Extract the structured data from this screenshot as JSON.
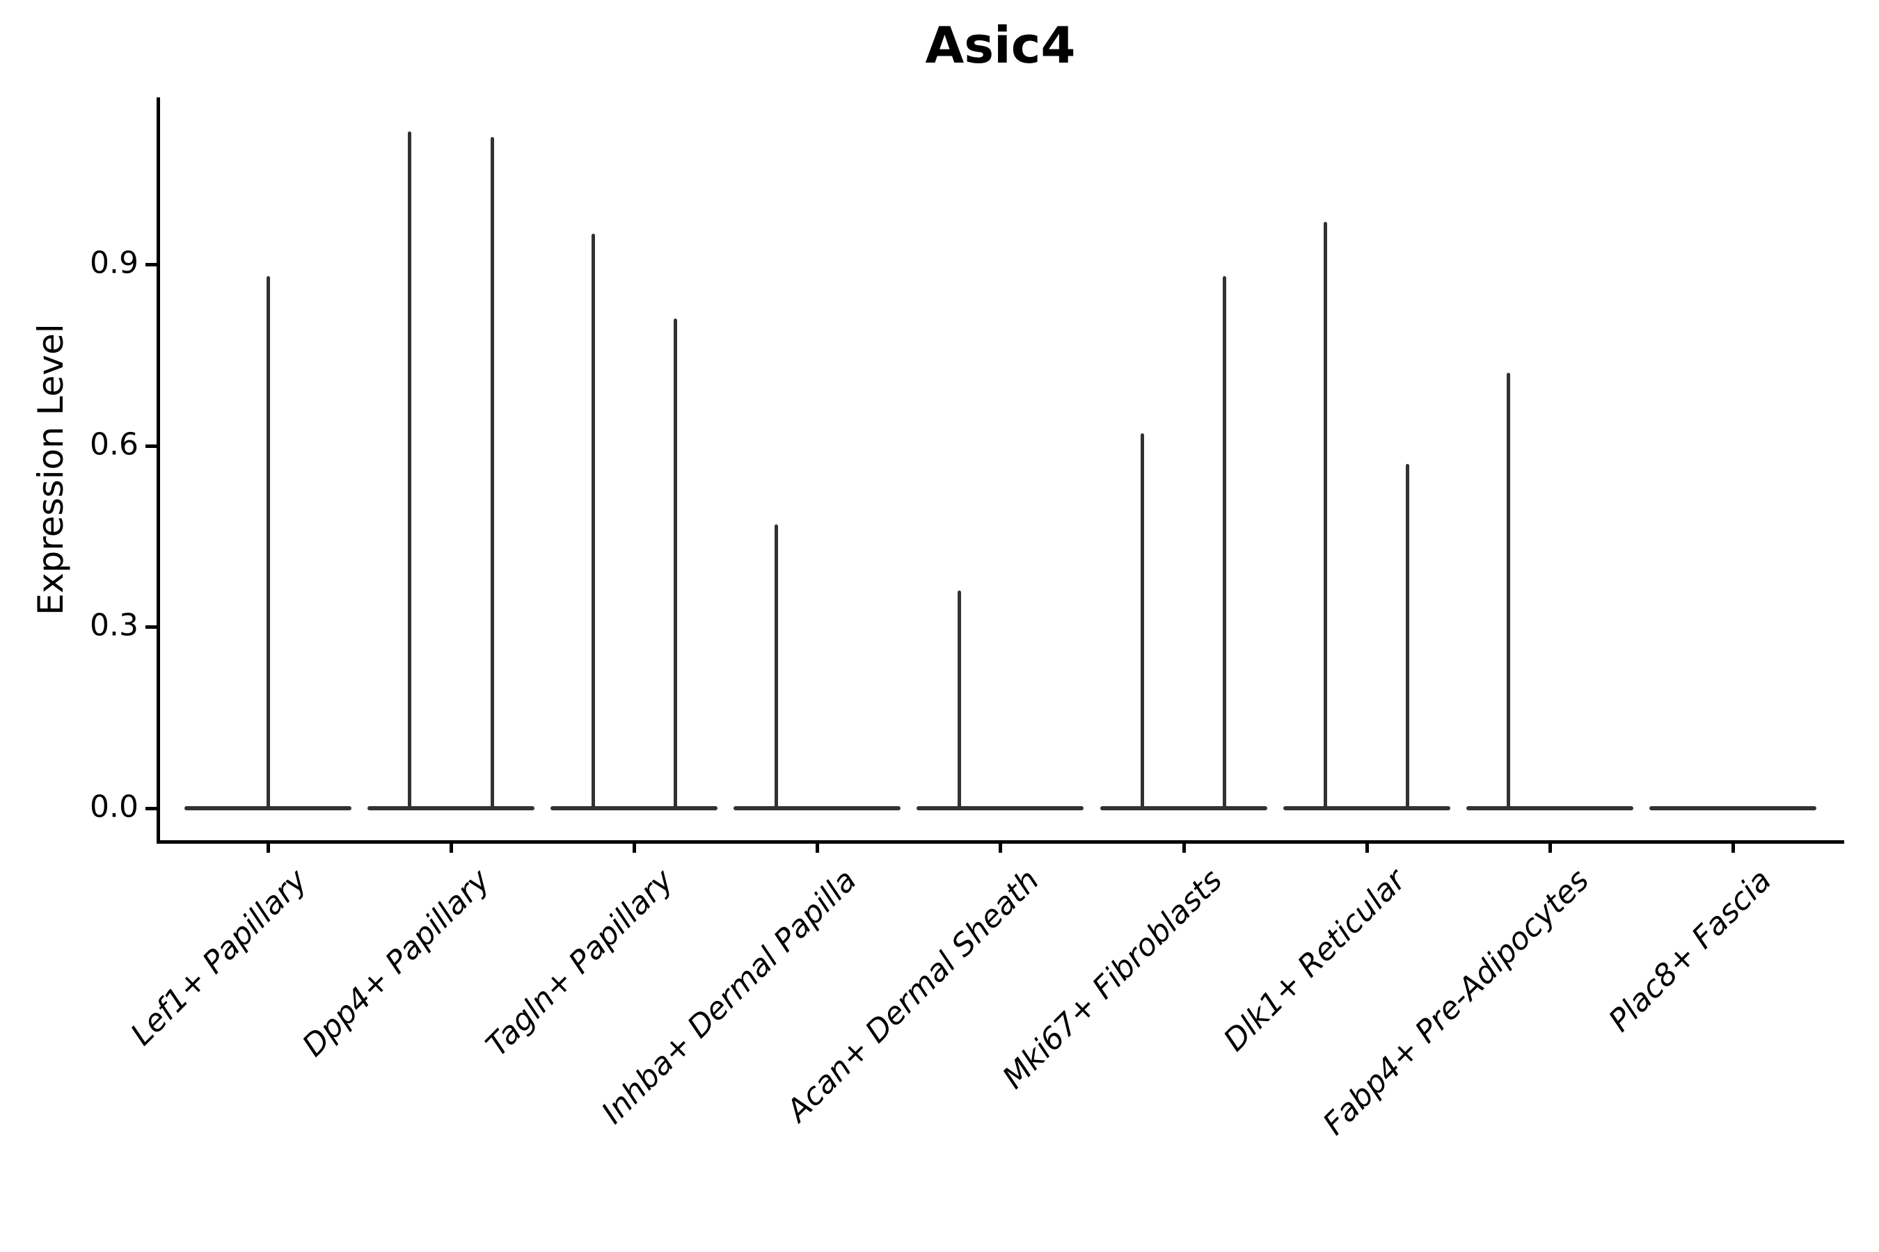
{
  "figure": {
    "title": "Asic4"
  },
  "colors": {
    "background": "#ffffff",
    "axis": "#000000",
    "text": "#000000",
    "violin": "#323232"
  },
  "chart_data": {
    "type": "violin",
    "title": "Asic4",
    "xlabel": "",
    "ylabel": "Expression Level",
    "ylim": [
      -0.06,
      1.18
    ],
    "grid": false,
    "legend": null,
    "yticks": [
      {
        "value": 0.0,
        "label": "0.0"
      },
      {
        "value": 0.3,
        "label": "0.3"
      },
      {
        "value": 0.6,
        "label": "0.6"
      },
      {
        "value": 0.9,
        "label": "0.9"
      }
    ],
    "categories": [
      "Lef1+ Papillary",
      "Dpp4+ Papillary",
      "Tagln+ Papillary",
      "Inhba+ Dermal Papilla",
      "Acan+ Dermal Sheath",
      "Mki67+ Fibroblasts",
      "Dlk1+ Reticular",
      "Fabp4+ Pre-Adipocytes",
      "Plac8+ Fascia"
    ],
    "description": "Violin plot of Asic4 expression per fibroblast subtype; each violin is collapsed at expression 0 (flat base) with thin density spikes rising to the maximum expression values listed.",
    "baseline_value": 0.0,
    "baseline_width_frac": 0.91,
    "violins": [
      {
        "category": "Lef1+ Papillary",
        "spikes": [
          {
            "offset_frac": 0.0,
            "max": 0.88
          }
        ]
      },
      {
        "category": "Dpp4+ Papillary",
        "spikes": [
          {
            "offset_frac": -0.225,
            "max": 1.12
          },
          {
            "offset_frac": 0.225,
            "max": 1.11
          }
        ]
      },
      {
        "category": "Tagln+ Papillary",
        "spikes": [
          {
            "offset_frac": -0.225,
            "max": 0.95
          },
          {
            "offset_frac": 0.225,
            "max": 0.81
          }
        ]
      },
      {
        "category": "Inhba+ Dermal Papilla",
        "spikes": [
          {
            "offset_frac": -0.225,
            "max": 0.47
          }
        ]
      },
      {
        "category": "Acan+ Dermal Sheath",
        "spikes": [
          {
            "offset_frac": -0.225,
            "max": 0.36
          }
        ]
      },
      {
        "category": "Mki67+ Fibroblasts",
        "spikes": [
          {
            "offset_frac": -0.225,
            "max": 0.62
          },
          {
            "offset_frac": 0.225,
            "max": 0.88
          }
        ]
      },
      {
        "category": "Dlk1+ Reticular",
        "spikes": [
          {
            "offset_frac": -0.225,
            "max": 0.97
          },
          {
            "offset_frac": 0.225,
            "max": 0.57
          }
        ]
      },
      {
        "category": "Fabp4+ Pre-Adipocytes",
        "spikes": [
          {
            "offset_frac": -0.225,
            "max": 0.72
          }
        ]
      },
      {
        "category": "Plac8+ Fascia",
        "spikes": []
      }
    ]
  }
}
